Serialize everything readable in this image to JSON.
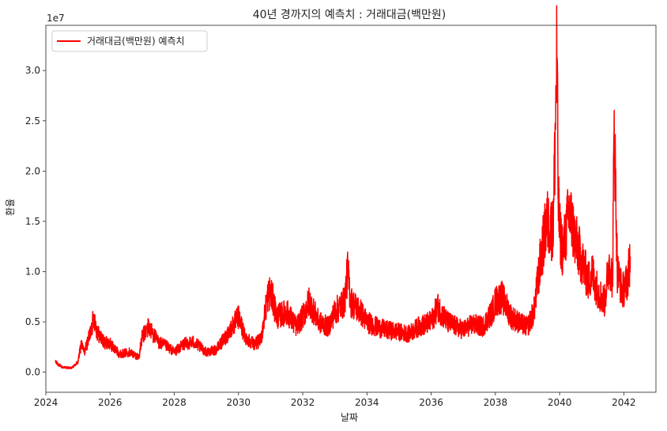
{
  "chart_data": {
    "type": "line",
    "title": "40년 경까지의 예측치 : 거래대금(백만원)",
    "xlabel": "날짜",
    "ylabel": "환율",
    "y_offset_label": "1e7",
    "xlim": [
      2024.0,
      2043.0
    ],
    "ylim": [
      -2000000,
      34500000
    ],
    "x_ticks": [
      2024,
      2026,
      2028,
      2030,
      2032,
      2034,
      2036,
      2038,
      2040,
      2042
    ],
    "x_tick_labels": [
      "2024",
      "2026",
      "2028",
      "2030",
      "2032",
      "2034",
      "2036",
      "2038",
      "2040",
      "2042"
    ],
    "y_ticks": [
      0,
      5000000,
      10000000,
      15000000,
      20000000,
      25000000,
      30000000
    ],
    "y_tick_labels": [
      "0.0",
      "0.5",
      "1.0",
      "1.5",
      "2.0",
      "2.5",
      "3.0"
    ],
    "grid": false,
    "legend_position": "top-left",
    "line_color": "#ff0000",
    "series": [
      {
        "name": "거래대금(백만원) 예측치",
        "x": [
          2024.3,
          2024.5,
          2024.8,
          2025.0,
          2025.1,
          2025.2,
          2025.35,
          2025.5,
          2025.6,
          2025.8,
          2026.0,
          2026.3,
          2026.6,
          2026.9,
          2027.0,
          2027.2,
          2027.5,
          2027.8,
          2028.0,
          2028.3,
          2028.6,
          2029.0,
          2029.3,
          2029.6,
          2029.8,
          2030.0,
          2030.2,
          2030.5,
          2030.7,
          2030.9,
          2031.0,
          2031.2,
          2031.5,
          2031.8,
          2032.0,
          2032.2,
          2032.5,
          2032.8,
          2033.0,
          2033.3,
          2033.4,
          2033.5,
          2033.8,
          2034.0,
          2034.3,
          2034.6,
          2035.0,
          2035.3,
          2035.6,
          2036.0,
          2036.2,
          2036.5,
          2036.8,
          2037.0,
          2037.3,
          2037.6,
          2037.9,
          2038.0,
          2038.2,
          2038.5,
          2038.8,
          2039.0,
          2039.2,
          2039.4,
          2039.6,
          2039.8,
          2039.92,
          2039.95,
          2040.0,
          2040.1,
          2040.3,
          2040.5,
          2040.7,
          2040.9,
          2041.0,
          2041.2,
          2041.4,
          2041.55,
          2041.65,
          2041.7,
          2041.8,
          2041.95,
          2042.1,
          2042.2
        ],
        "y": [
          1000000,
          500000,
          400000,
          1000000,
          2800000,
          2000000,
          3500000,
          5500000,
          4000000,
          3000000,
          2800000,
          1800000,
          2000000,
          1500000,
          3500000,
          4500000,
          3000000,
          2500000,
          2000000,
          2800000,
          3000000,
          2000000,
          2200000,
          3500000,
          4500000,
          5500000,
          3500000,
          2800000,
          3200000,
          7500000,
          8000000,
          5500000,
          6000000,
          4500000,
          5500000,
          7000000,
          5000000,
          4500000,
          6000000,
          7000000,
          10000000,
          7000000,
          6000000,
          5000000,
          4500000,
          4200000,
          4000000,
          3800000,
          4500000,
          5000000,
          6500000,
          5000000,
          4500000,
          4200000,
          4800000,
          4500000,
          6000000,
          7000000,
          7500000,
          5500000,
          4800000,
          4500000,
          6000000,
          11000000,
          15000000,
          14000000,
          32700000,
          18000000,
          14000000,
          12000000,
          16000000,
          13000000,
          11000000,
          9000000,
          10000000,
          8000000,
          7000000,
          11000000,
          9000000,
          25000000,
          10000000,
          8000000,
          9000000,
          11500000
        ]
      }
    ]
  }
}
